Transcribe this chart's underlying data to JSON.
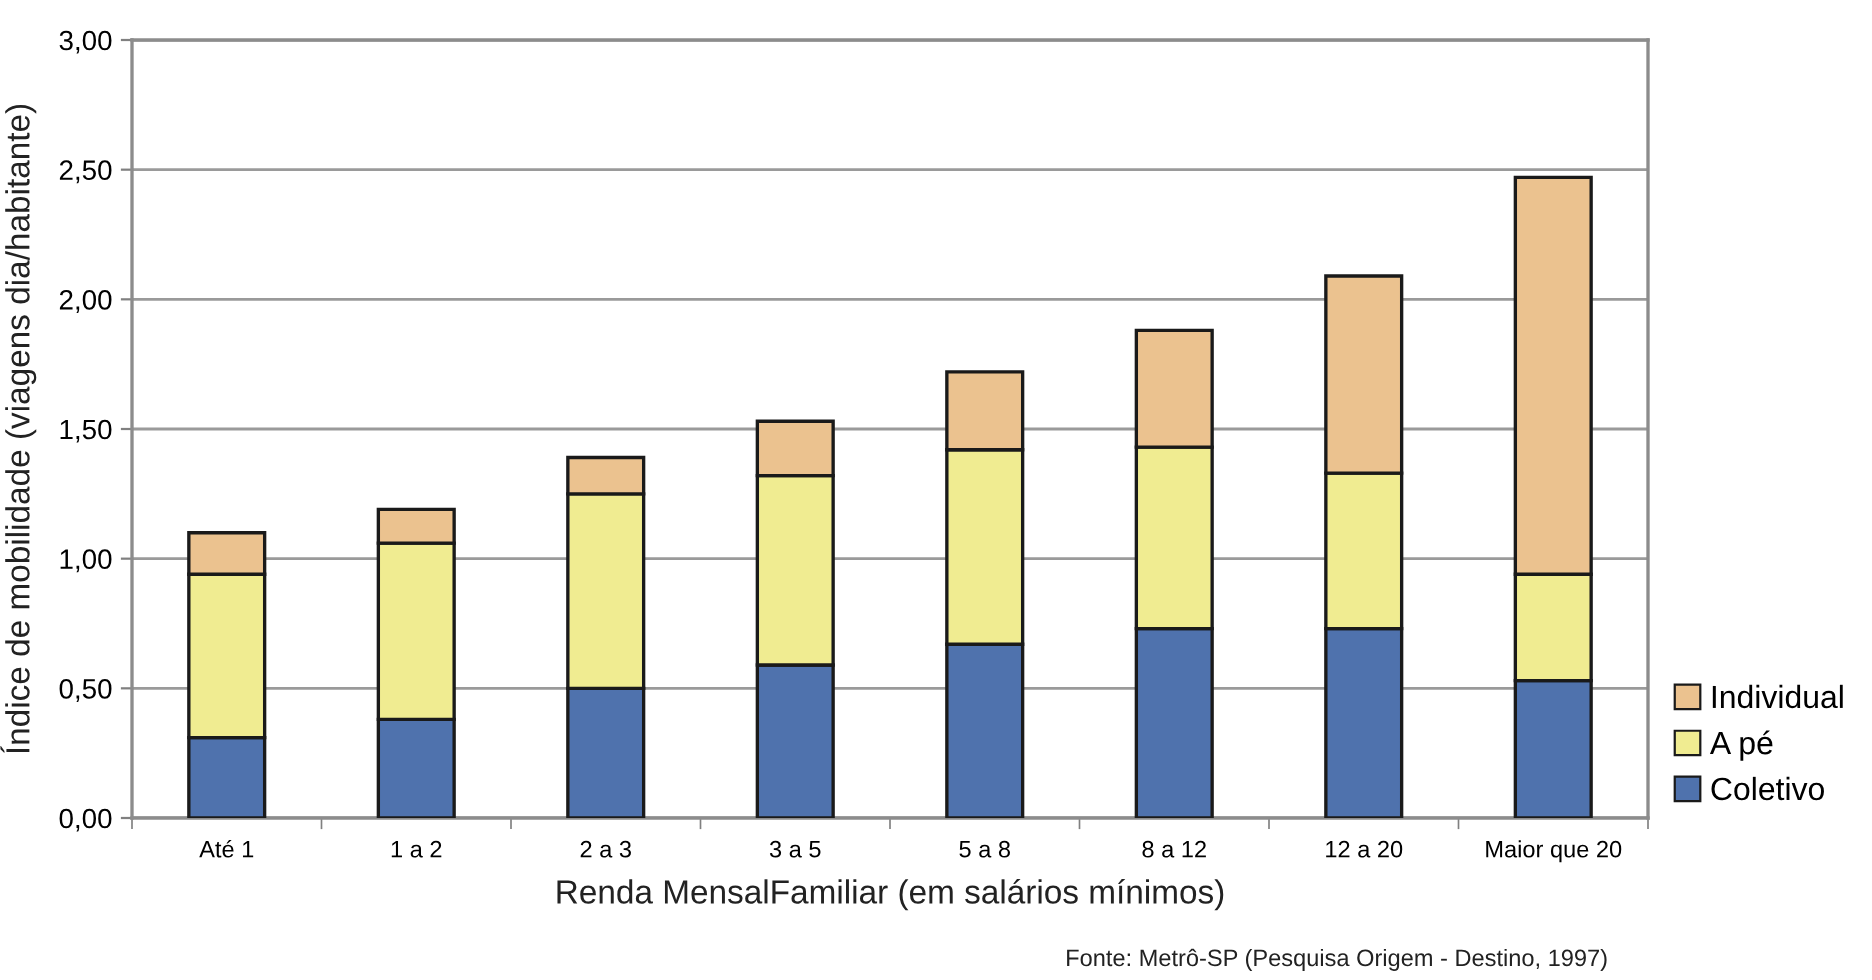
{
  "chart_data": {
    "type": "bar",
    "stacked": true,
    "categories": [
      "Até 1",
      "1 a 2",
      "2 a 3",
      "3 a 5",
      "5 a 8",
      "8 a 12",
      "12 a 20",
      "Maior que 20"
    ],
    "series": [
      {
        "name": "Coletivo",
        "color": "#4f72ad",
        "values": [
          0.31,
          0.38,
          0.5,
          0.59,
          0.67,
          0.73,
          0.73,
          0.53
        ]
      },
      {
        "name": "A pé",
        "color": "#f0ec91",
        "values": [
          0.63,
          0.68,
          0.75,
          0.73,
          0.75,
          0.7,
          0.6,
          0.41
        ]
      },
      {
        "name": "Individual",
        "color": "#ebc28f",
        "values": [
          0.16,
          0.13,
          0.14,
          0.21,
          0.3,
          0.45,
          0.76,
          1.53
        ]
      }
    ],
    "xlabel": "Renda MensalFamiliar (em salários mínimos)",
    "ylabel": "Índice de mobilidade (viagens dia/habitante)",
    "ylim": [
      0,
      3
    ],
    "yticks": [
      {
        "value": 0,
        "label": "0,00"
      },
      {
        "value": 0.5,
        "label": "0,50"
      },
      {
        "value": 1,
        "label": "1,00"
      },
      {
        "value": 1.5,
        "label": "1,50"
      },
      {
        "value": 2,
        "label": "2,00"
      },
      {
        "value": 2.5,
        "label": "2,50"
      },
      {
        "value": 3,
        "label": "3,00"
      }
    ],
    "grid": "y",
    "legend": "right",
    "annotations": [
      "Fonte: Metrô-SP (Pesquisa Origem - Destino, 1997)"
    ]
  }
}
